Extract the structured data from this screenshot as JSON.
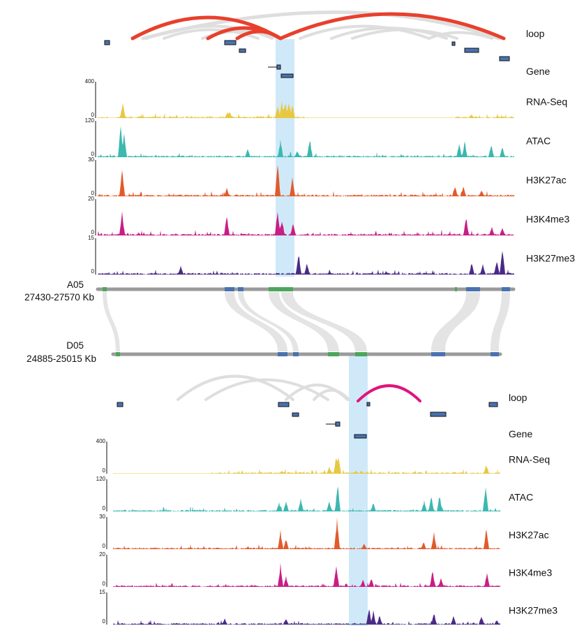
{
  "panels": [
    {
      "id": "A05",
      "chrom_label": "A05",
      "range_label": "27430-27570 Kb",
      "loop_label": "loop",
      "gene_label": "Gene",
      "tracks": [
        {
          "name": "RNA-Seq",
          "max_label": "400",
          "min_label": "0",
          "color": "#e8c840"
        },
        {
          "name": "ATAC",
          "max_label": "120",
          "min_label": "0",
          "color": "#3bb8b0"
        },
        {
          "name": "H3K27ac",
          "max_label": "30",
          "min_label": "0",
          "color": "#e25a2b"
        },
        {
          "name": "H3K4me3",
          "max_label": "20",
          "min_label": "0",
          "color": "#c81e86"
        },
        {
          "name": "H3K27me3",
          "max_label": "15",
          "min_label": "0",
          "color": "#4b2a86"
        }
      ]
    },
    {
      "id": "D05",
      "chrom_label": "D05",
      "range_label": "24885-25015 Kb",
      "loop_label": "loop",
      "gene_label": "Gene",
      "tracks": [
        {
          "name": "RNA-Seq",
          "max_label": "400",
          "min_label": "0",
          "color": "#e8c840"
        },
        {
          "name": "ATAC",
          "max_label": "120",
          "min_label": "0",
          "color": "#3bb8b0"
        },
        {
          "name": "H3K27ac",
          "max_label": "30",
          "min_label": "0",
          "color": "#e25a2b"
        },
        {
          "name": "H3K4me3",
          "max_label": "20",
          "min_label": "0",
          "color": "#c81e86"
        },
        {
          "name": "H3K27me3",
          "max_label": "15",
          "min_label": "0",
          "color": "#4b2a86"
        }
      ]
    }
  ],
  "colors": {
    "highlight": "#cfe9f8",
    "loop_highlight_A05": "#e8402c",
    "loop_highlight_D05": "#e0147c",
    "loop_background": "#d9d9d9",
    "chromosome_bar": "#9a9a9a",
    "block_blue": "#4a72b0",
    "block_green": "#4ca65a",
    "synteny_ribbon": "#e3e3e3"
  }
}
